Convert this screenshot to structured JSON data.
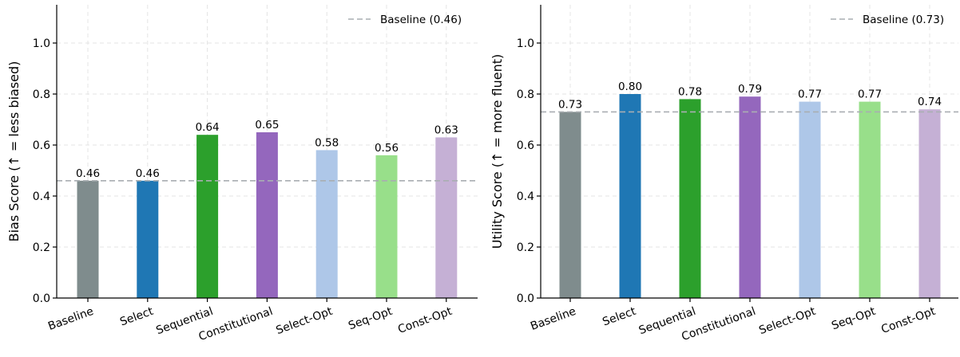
{
  "chart_data": [
    {
      "type": "bar",
      "categories": [
        "Baseline",
        "Select",
        "Sequential",
        "Constitutional",
        "Select-Opt",
        "Seq-Opt",
        "Const-Opt"
      ],
      "values": [
        0.46,
        0.46,
        0.64,
        0.65,
        0.58,
        0.56,
        0.63
      ],
      "value_labels": [
        "0.46",
        "0.46",
        "0.64",
        "0.65",
        "0.58",
        "0.56",
        "0.63"
      ],
      "colors": [
        "#7f8c8d",
        "#1f77b4",
        "#2ca02c",
        "#9467bd",
        "#aec7e8",
        "#98df8a",
        "#c5b0d5"
      ],
      "ylabel": "Bias Score  (↑ = less biased)",
      "ylim": [
        0,
        1.15
      ],
      "yticks": [
        0.0,
        0.2,
        0.4,
        0.6,
        0.8,
        1.0
      ],
      "ytick_labels": [
        "0.0",
        "0.2",
        "0.4",
        "0.6",
        "0.8",
        "1.0"
      ],
      "baseline": {
        "value": 0.46,
        "label": "Baseline (0.46)",
        "color": "#a9aeb2"
      },
      "legend_position": "top-right",
      "grid": true
    },
    {
      "type": "bar",
      "categories": [
        "Baseline",
        "Select",
        "Sequential",
        "Constitutional",
        "Select-Opt",
        "Seq-Opt",
        "Const-Opt"
      ],
      "values": [
        0.73,
        0.8,
        0.78,
        0.79,
        0.77,
        0.77,
        0.74
      ],
      "value_labels": [
        "0.73",
        "0.80",
        "0.78",
        "0.79",
        "0.77",
        "0.77",
        "0.74"
      ],
      "colors": [
        "#7f8c8d",
        "#1f77b4",
        "#2ca02c",
        "#9467bd",
        "#aec7e8",
        "#98df8a",
        "#c5b0d5"
      ],
      "ylabel": "Utility Score  (↑ = more fluent)",
      "ylim": [
        0,
        1.15
      ],
      "yticks": [
        0.0,
        0.2,
        0.4,
        0.6,
        0.8,
        1.0
      ],
      "ytick_labels": [
        "0.0",
        "0.2",
        "0.4",
        "0.6",
        "0.8",
        "1.0"
      ],
      "baseline": {
        "value": 0.73,
        "label": "Baseline (0.73)",
        "color": "#a9aeb2"
      },
      "legend_position": "top-right",
      "grid": true
    }
  ]
}
